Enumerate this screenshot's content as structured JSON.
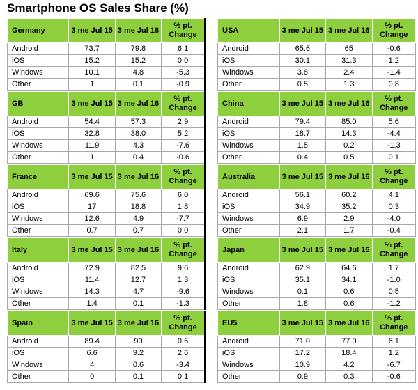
{
  "title": "Smartphone OS Sales Share (%)",
  "chart_data": {
    "type": "table",
    "title": "Smartphone OS Sales Share (%)",
    "columns": [
      "3 me Jul 15",
      "3 me Jul 16",
      "% pt. Change"
    ],
    "regions": [
      {
        "name": "Germany",
        "col": "left",
        "headers": [
          "3 me Jul 15",
          "3 me Jul 16",
          "% pt. Change"
        ],
        "rows": [
          [
            "Android",
            "73.7",
            "79.8",
            "6.1"
          ],
          [
            "iOS",
            "15.2",
            "15.2",
            "0.0"
          ],
          [
            "Windows",
            "10.1",
            "4.8",
            "-5.3"
          ],
          [
            "Other",
            "1",
            "0.1",
            "-0.9"
          ]
        ]
      },
      {
        "name": "GB",
        "col": "left",
        "headers": [
          "3 me Jul 15",
          "3 me Jul 16",
          "% pt. Change"
        ],
        "rows": [
          [
            "Android",
            "54.4",
            "57.3",
            "2.9"
          ],
          [
            "iOS",
            "32.8",
            "38.0",
            "5.2"
          ],
          [
            "Windows",
            "11.9",
            "4.3",
            "-7.6"
          ],
          [
            "Other",
            "1",
            "0.4",
            "-0.6"
          ]
        ]
      },
      {
        "name": "France",
        "col": "left",
        "headers": [
          "3 me Jul 15",
          "3 me Jul 16",
          "% pt. Change"
        ],
        "rows": [
          [
            "Android",
            "69.6",
            "75.6",
            "6.0"
          ],
          [
            "iOS",
            "17",
            "18.8",
            "1.8"
          ],
          [
            "Windows",
            "12.6",
            "4.9",
            "-7.7"
          ],
          [
            "Other",
            "0.7",
            "0.7",
            "0.0"
          ]
        ]
      },
      {
        "name": "Italy",
        "col": "left",
        "headers": [
          "3 me Jul 15",
          "3 me Jul 16",
          "% pt. Change"
        ],
        "rows": [
          [
            "Android",
            "72.9",
            "82.5",
            "9.6"
          ],
          [
            "iOS",
            "11.4",
            "12.7",
            "1.3"
          ],
          [
            "Windows",
            "14.3",
            "4.7",
            "-9.6"
          ],
          [
            "Other",
            "1.4",
            "0.1",
            "-1.3"
          ]
        ]
      },
      {
        "name": "Spain",
        "col": "left",
        "headers": [
          "3 me Jul 15",
          "3 me Jul 16",
          "% pt. Change"
        ],
        "rows": [
          [
            "Android",
            "89.4",
            "90",
            "0.6"
          ],
          [
            "iOS",
            "6.6",
            "9.2",
            "2.6"
          ],
          [
            "Windows",
            "4",
            "0.6",
            "-3.4"
          ],
          [
            "Other",
            "0",
            "0.1",
            "0.1"
          ]
        ]
      },
      {
        "name": "USA",
        "col": "right",
        "headers": [
          "3 me Jul 15",
          "3 me Jul 16",
          "% pt. Change"
        ],
        "rows": [
          [
            "Android",
            "65.6",
            "65",
            "-0.6"
          ],
          [
            "iOS",
            "30.1",
            "31.3",
            "1.2"
          ],
          [
            "Windows",
            "3.8",
            "2.4",
            "-1.4"
          ],
          [
            "Other",
            "0.5",
            "1.3",
            "0.8"
          ]
        ]
      },
      {
        "name": "China",
        "col": "right",
        "headers": [
          "3 me Jul 15",
          "3 me Jul 16",
          "% pt. Change"
        ],
        "rows": [
          [
            "Android",
            "79.4",
            "85.0",
            "5.6"
          ],
          [
            "iOS",
            "18.7",
            "14.3",
            "-4.4"
          ],
          [
            "Windows",
            "1.5",
            "0.2",
            "-1.3"
          ],
          [
            "Other",
            "0.4",
            "0.5",
            "0.1"
          ]
        ]
      },
      {
        "name": "Australia",
        "col": "right",
        "headers": [
          "3 me Jul 15",
          "3 me Jul 16",
          "% pt. Change"
        ],
        "rows": [
          [
            "Android",
            "56.1",
            "60.2",
            "4.1"
          ],
          [
            "iOS",
            "34.9",
            "35.2",
            "0.3"
          ],
          [
            "Windows",
            "6.9",
            "2.9",
            "-4.0"
          ],
          [
            "Other",
            "2.1",
            "1.7",
            "-0.4"
          ]
        ]
      },
      {
        "name": "Japan",
        "col": "right",
        "headers": [
          "3 me Jul 15",
          "3 me Jul 16",
          "% pt. Change"
        ],
        "rows": [
          [
            "Android",
            "62.9",
            "64.6",
            "1.7"
          ],
          [
            "iOS",
            "35.1",
            "34.1",
            "-1.0"
          ],
          [
            "Windows",
            "0.1",
            "0.6",
            "0.5"
          ],
          [
            "Other",
            "1.8",
            "0.6",
            "-1.2"
          ]
        ]
      },
      {
        "name": "EU5",
        "col": "right",
        "headers": [
          "3 me Jul 15",
          "3 me Jul 16",
          "% pt. Change"
        ],
        "rows": [
          [
            "Android",
            "71.0",
            "77.0",
            "6.1"
          ],
          [
            "iOS",
            "17.2",
            "18.4",
            "1.2"
          ],
          [
            "Windows",
            "10.9",
            "4.2",
            "-6.7"
          ],
          [
            "Other",
            "0.9",
            "0.3",
            "-0.6"
          ]
        ]
      }
    ]
  },
  "colors": {
    "header_bg": "#8ecf3e",
    "grid": "#a8a8a8"
  }
}
